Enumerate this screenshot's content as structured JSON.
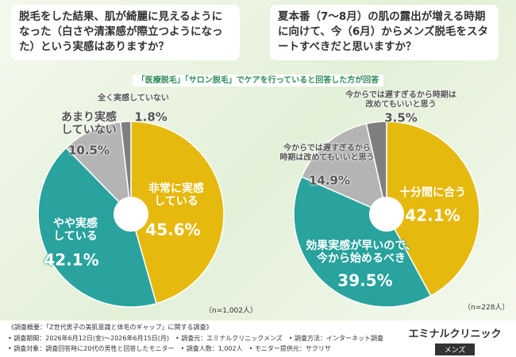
{
  "banner": "「医療脱毛」「サロン脱毛」でケアを行っていると回答した方が回答",
  "chart_data": [
    {
      "type": "pie",
      "title": "脱毛をした結果、肌が綺麗に見えるようになった（白さや清潔感が際立つようになった）という実感はありますか？",
      "categories": [
        "非常に実感\nしている",
        "やや実感\nしている",
        "あまり実感\nしていない",
        "全く実感していない"
      ],
      "values": [
        45.6,
        42.1,
        10.5,
        1.8
      ],
      "value_labels": [
        "45.6%",
        "42.1%",
        "10.5%",
        "1.8%"
      ],
      "colors": [
        "#e6b90e",
        "#2aa39e",
        "#b4b4b4",
        "#7f7f7f"
      ],
      "note": "（n=1,002人）"
    },
    {
      "type": "pie",
      "title": "夏本番（7〜8月）の肌の露出が増える時期に向けて、今（6月）からメンズ脱毛をスタートすべきだと思いますか？",
      "categories": [
        "十分間に合う",
        "効果実感が早いので、\n今から始めるべき",
        "今からでは遅すぎるから\n時期は改めてもいいと思う",
        "今からでは遅すぎるから時期は改めてもいいと思う"
      ],
      "values": [
        42.1,
        39.5,
        14.9,
        3.5
      ],
      "value_labels": [
        "42.1%",
        "39.5%",
        "14.9%",
        "3.5%"
      ],
      "colors": [
        "#e6b90e",
        "#2aa39e",
        "#b4b4b4",
        "#7f7f7f"
      ],
      "note": "（n=228人）"
    }
  ],
  "survey_notes": [
    "《調査概要：「Z世代男子の美肌意識と体毛のギャップ」に関する調査》",
    "• 調査期間：2026年6月12日(金)～2026年6月15日(月)　• 調査元：エミナルクリニックメンズ　• 調査方法：インターネット調査",
    "• 調査対象：調査回答時に20代の男性と回答したモニター　• 調査人数：1,002人　• モニター提供元：サクリサ"
  ],
  "logo": {
    "name": "エミナルクリニック",
    "sub": "メンズ"
  }
}
